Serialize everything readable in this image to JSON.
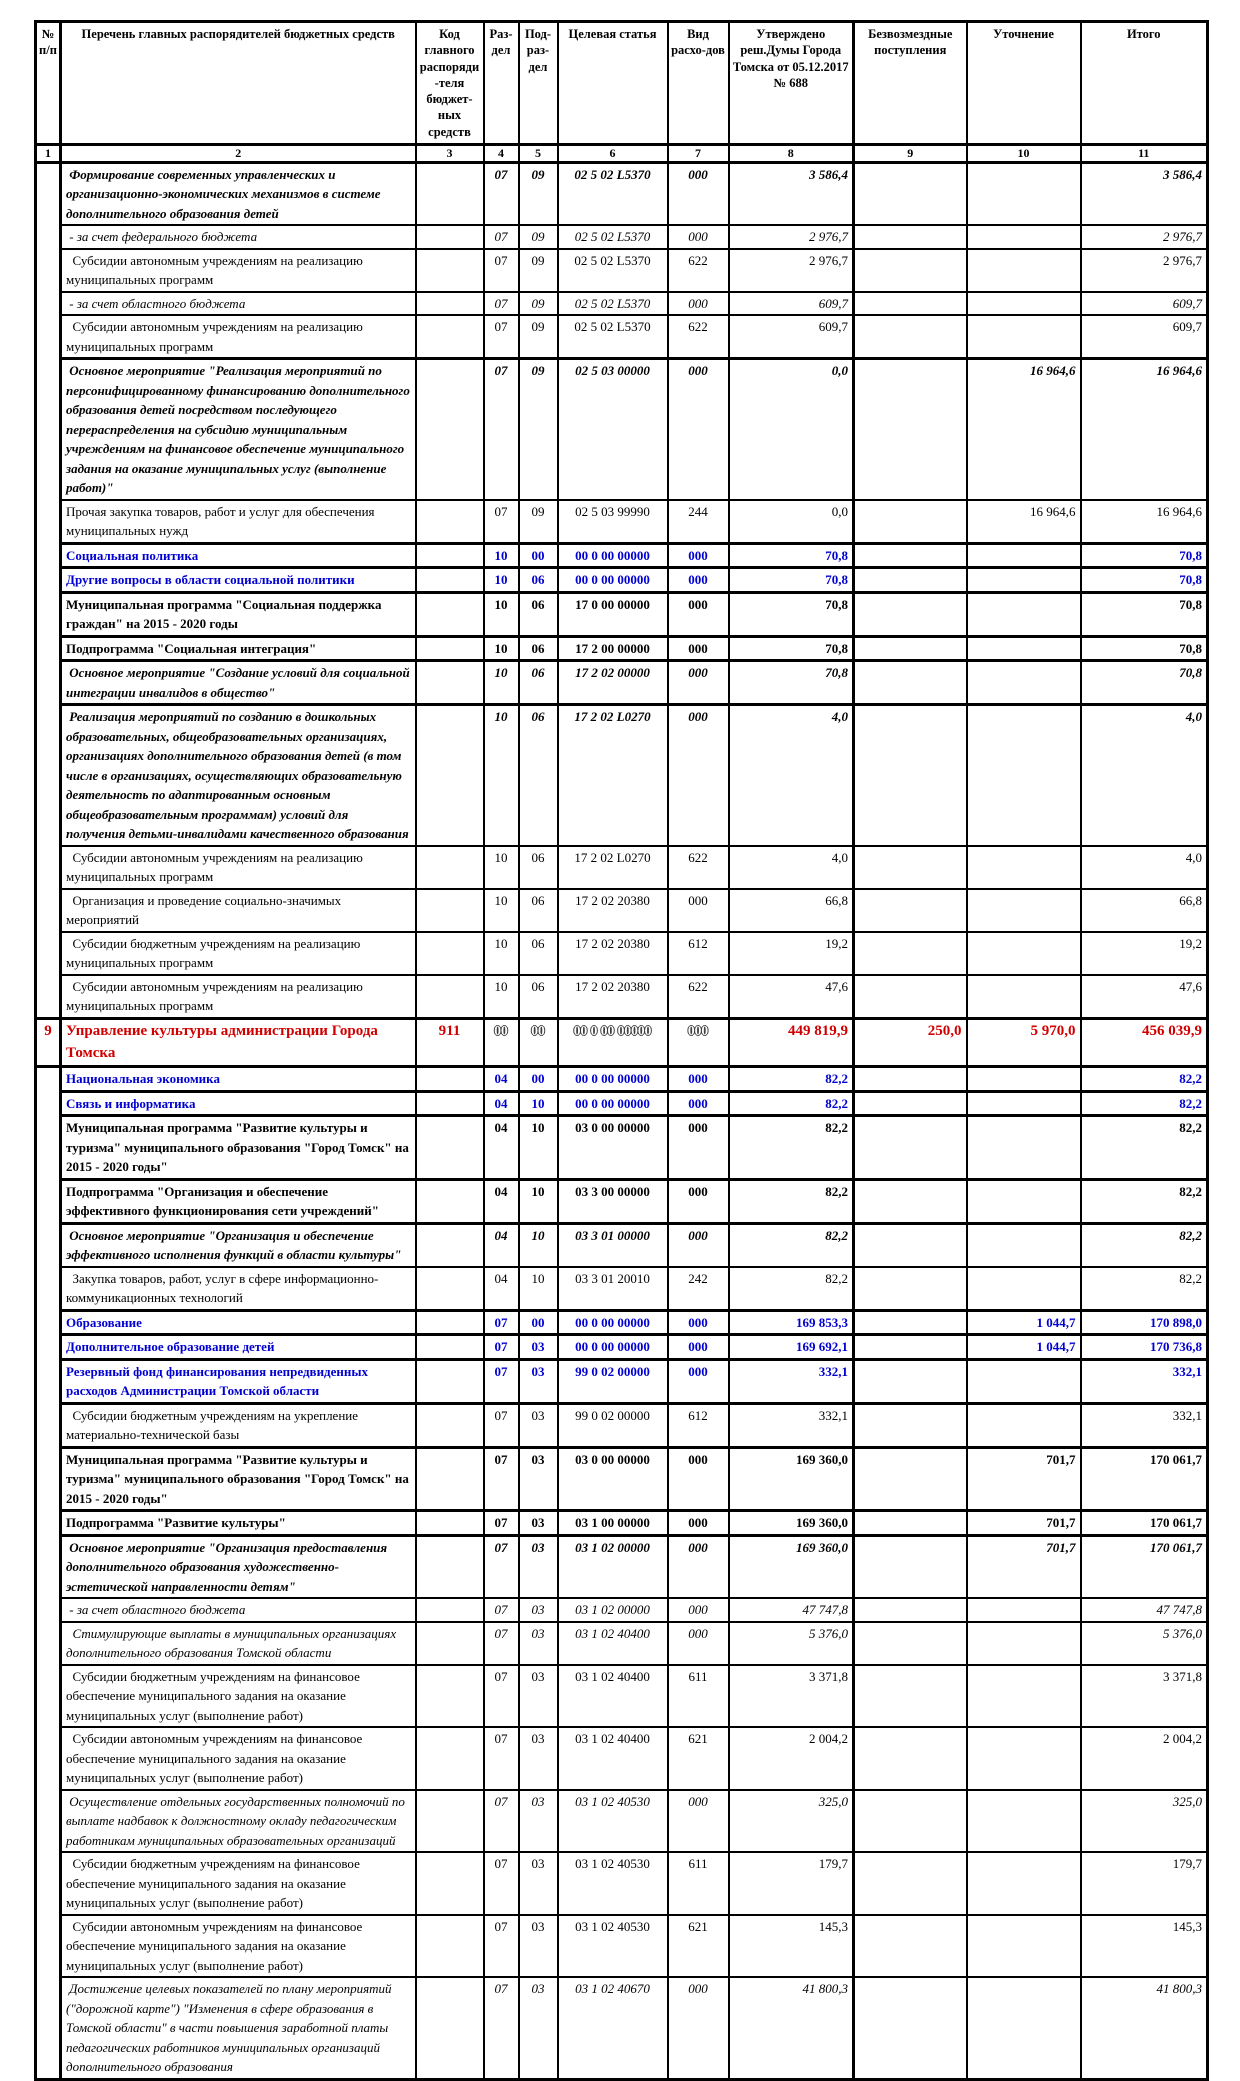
{
  "table": {
    "columns": [
      {
        "id": "num",
        "label": "№ п/п"
      },
      {
        "id": "name",
        "label": "Перечень главных распорядителей бюджетных средств"
      },
      {
        "id": "code",
        "label": "Код главного распоряди-теля бюджет-ных средств"
      },
      {
        "id": "razdel",
        "label": "Раз-дел"
      },
      {
        "id": "podrazdel",
        "label": "Под-раз-дел"
      },
      {
        "id": "target",
        "label": "Целевая статья"
      },
      {
        "id": "vid",
        "label": "Вид расхо-дов"
      },
      {
        "id": "approved",
        "label": "Утверждено реш.Думы Города Томска от 05.12.2017 № 688"
      },
      {
        "id": "gratuitous",
        "label": "Безвозмездные поступления"
      },
      {
        "id": "refine",
        "label": "Уточнение"
      },
      {
        "id": "total",
        "label": "Итого"
      }
    ],
    "column_numbers": [
      "1",
      "2",
      "3",
      "4",
      "5",
      "6",
      "7",
      "8",
      "9",
      "10",
      "11"
    ],
    "rows": [
      {
        "style": "bold-italic",
        "num": "",
        "name": " Формирование современных управленческих и организационно-экономических механизмов в системе дополнительного образования детей",
        "code": "",
        "razdel": "07",
        "podrazdel": "09",
        "target": "02 5 02 L5370",
        "vid": "000",
        "approved": "3 586,4",
        "gratuitous": "",
        "refine": "",
        "total": "3 586,4"
      },
      {
        "style": "italic",
        "num": "",
        "name": " - за счет федерального бюджета",
        "code": "",
        "razdel": "07",
        "podrazdel": "09",
        "target": "02 5 02 L5370",
        "vid": "000",
        "approved": "2 976,7",
        "gratuitous": "",
        "refine": "",
        "total": "2 976,7"
      },
      {
        "style": "normal",
        "num": "",
        "name": "  Субсидии автономным учреждениям на реализацию муниципальных программ",
        "code": "",
        "razdel": "07",
        "podrazdel": "09",
        "target": "02 5 02 L5370",
        "vid": "622",
        "approved": "2 976,7",
        "gratuitous": "",
        "refine": "",
        "total": "2 976,7"
      },
      {
        "style": "italic",
        "num": "",
        "name": " - за счет областного бюджета",
        "code": "",
        "razdel": "07",
        "podrazdel": "09",
        "target": "02 5 02 L5370",
        "vid": "000",
        "approved": "609,7",
        "gratuitous": "",
        "refine": "",
        "total": "609,7"
      },
      {
        "style": "normal",
        "num": "",
        "name": "  Субсидии автономным учреждениям на реализацию муниципальных программ",
        "code": "",
        "razdel": "07",
        "podrazdel": "09",
        "target": "02 5 02 L5370",
        "vid": "622",
        "approved": "609,7",
        "gratuitous": "",
        "refine": "",
        "total": "609,7"
      },
      {
        "style": "bold-italic",
        "num": "",
        "name": " Основное мероприятие \"Реализация мероприятий по персонифицированному финансированию дополнительного образования детей посредством последующего перераспределения на субсидию муниципальным учреждениям на финансовое обеспечение муниципального задания на оказание муниципальных услуг (выполнение работ)\"",
        "code": "",
        "razdel": "07",
        "podrazdel": "09",
        "target": "02 5 03 00000",
        "vid": "000",
        "approved": "0,0",
        "gratuitous": "",
        "refine": "16 964,6",
        "total": "16 964,6"
      },
      {
        "style": "normal",
        "num": "",
        "name": "Прочая закупка товаров, работ и услуг для обеспечения муниципальных нужд",
        "code": "",
        "razdel": "07",
        "podrazdel": "09",
        "target": "02 5 03 99990",
        "vid": "244",
        "approved": "0,0",
        "gratuitous": "",
        "refine": "16 964,6",
        "total": "16 964,6"
      },
      {
        "style": "blue",
        "num": "",
        "name": "Социальная политика",
        "code": "",
        "razdel": "10",
        "podrazdel": "00",
        "target": "00 0 00 00000",
        "vid": "000",
        "approved": "70,8",
        "gratuitous": "",
        "refine": "",
        "total": "70,8"
      },
      {
        "style": "blue",
        "num": "",
        "name": "Другие вопросы в области социальной политики",
        "code": "",
        "razdel": "10",
        "podrazdel": "06",
        "target": "00 0 00 00000",
        "vid": "000",
        "approved": "70,8",
        "gratuitous": "",
        "refine": "",
        "total": "70,8"
      },
      {
        "style": "bold",
        "num": "",
        "name": "Муниципальная программа \"Социальная поддержка граждан\" на 2015 - 2020 годы",
        "code": "",
        "razdel": "10",
        "podrazdel": "06",
        "target": "17 0 00 00000",
        "vid": "000",
        "approved": "70,8",
        "gratuitous": "",
        "refine": "",
        "total": "70,8"
      },
      {
        "style": "bold",
        "num": "",
        "name": "Подпрограмма \"Социальная интеграция\"",
        "code": "",
        "razdel": "10",
        "podrazdel": "06",
        "target": "17 2 00 00000",
        "vid": "000",
        "approved": "70,8",
        "gratuitous": "",
        "refine": "",
        "total": "70,8"
      },
      {
        "style": "bold-italic",
        "num": "",
        "name": " Основное мероприятие \"Создание условий для социальной интеграции инвалидов в общество\"",
        "code": "",
        "razdel": "10",
        "podrazdel": "06",
        "target": "17 2 02 00000",
        "vid": "000",
        "approved": "70,8",
        "gratuitous": "",
        "refine": "",
        "total": "70,8"
      },
      {
        "style": "bold-italic",
        "num": "",
        "name": " Реализация мероприятий по созданию в дошкольных образовательных, общеобразовательных организациях, организациях дополнительного образования детей (в том числе в организациях, осуществляющих образовательную деятельность по адаптированным основным общеобразовательным программам) условий для получения детьми-инвалидами качественного образования",
        "code": "",
        "razdel": "10",
        "podrazdel": "06",
        "target": "17 2 02 L0270",
        "vid": "000",
        "approved": "4,0",
        "gratuitous": "",
        "refine": "",
        "total": "4,0"
      },
      {
        "style": "normal",
        "num": "",
        "name": "  Субсидии автономным учреждениям на реализацию муниципальных программ",
        "code": "",
        "razdel": "10",
        "podrazdel": "06",
        "target": "17 2 02 L0270",
        "vid": "622",
        "approved": "4,0",
        "gratuitous": "",
        "refine": "",
        "total": "4,0"
      },
      {
        "style": "normal",
        "num": "",
        "name": "  Организация и проведение социально-значимых мероприятий",
        "code": "",
        "razdel": "10",
        "podrazdel": "06",
        "target": "17 2 02 20380",
        "vid": "000",
        "approved": "66,8",
        "gratuitous": "",
        "refine": "",
        "total": "66,8"
      },
      {
        "style": "normal",
        "num": "",
        "name": "  Субсидии бюджетным учреждениям на реализацию муниципальных программ",
        "code": "",
        "razdel": "10",
        "podrazdel": "06",
        "target": "17 2 02 20380",
        "vid": "612",
        "approved": "19,2",
        "gratuitous": "",
        "refine": "",
        "total": "19,2"
      },
      {
        "style": "normal",
        "num": "",
        "name": "  Субсидии автономным учреждениям на реализацию муниципальных программ",
        "code": "",
        "razdel": "10",
        "podrazdel": "06",
        "target": "17 2 02 20380",
        "vid": "622",
        "approved": "47,6",
        "gratuitous": "",
        "refine": "",
        "total": "47,6"
      },
      {
        "style": "red",
        "num": "9",
        "name": "Управление культуры администрации Города Томска",
        "code": "911",
        "razdel": "00",
        "podrazdel": "00",
        "target": "00 0 00 00000",
        "vid": "000",
        "approved": "449 819,9",
        "gratuitous": "250,0",
        "refine": "5 970,0",
        "total": "456 039,9"
      },
      {
        "style": "blue",
        "num": "",
        "name": "Национальная экономика",
        "code": "",
        "razdel": "04",
        "podrazdel": "00",
        "target": "00 0 00 00000",
        "vid": "000",
        "approved": "82,2",
        "gratuitous": "",
        "refine": "",
        "total": "82,2"
      },
      {
        "style": "blue",
        "num": "",
        "name": "Связь и информатика",
        "code": "",
        "razdel": "04",
        "podrazdel": "10",
        "target": "00 0 00 00000",
        "vid": "000",
        "approved": "82,2",
        "gratuitous": "",
        "refine": "",
        "total": "82,2"
      },
      {
        "style": "bold",
        "num": "",
        "name": "Муниципальная программа \"Развитие культуры и туризма\" муниципального образования \"Город Томск\" на 2015 - 2020 годы\"",
        "code": "",
        "razdel": "04",
        "podrazdel": "10",
        "target": "03 0 00 00000",
        "vid": "000",
        "approved": "82,2",
        "gratuitous": "",
        "refine": "",
        "total": "82,2"
      },
      {
        "style": "bold",
        "num": "",
        "name": "Подпрограмма \"Организация и обеспечение эффективного функционирования сети учреждений\"",
        "code": "",
        "razdel": "04",
        "podrazdel": "10",
        "target": "03 3 00 00000",
        "vid": "000",
        "approved": "82,2",
        "gratuitous": "",
        "refine": "",
        "total": "82,2"
      },
      {
        "style": "bold-italic",
        "num": "",
        "name": " Основное мероприятие \"Организация и обеспечение эффективного исполнения функций в области культуры\"",
        "code": "",
        "razdel": "04",
        "podrazdel": "10",
        "target": "03 3 01 00000",
        "vid": "000",
        "approved": "82,2",
        "gratuitous": "",
        "refine": "",
        "total": "82,2"
      },
      {
        "style": "normal",
        "num": "",
        "name": "  Закупка товаров, работ, услуг в сфере информационно-коммуникационных технологий",
        "code": "",
        "razdel": "04",
        "podrazdel": "10",
        "target": "03 3 01 20010",
        "vid": "242",
        "approved": "82,2",
        "gratuitous": "",
        "refine": "",
        "total": "82,2"
      },
      {
        "style": "blue",
        "num": "",
        "name": "Образование",
        "code": "",
        "razdel": "07",
        "podrazdel": "00",
        "target": "00 0 00 00000",
        "vid": "000",
        "approved": "169 853,3",
        "gratuitous": "",
        "refine": "1 044,7",
        "total": "170 898,0"
      },
      {
        "style": "blue",
        "num": "",
        "name": "Дополнительное образование детей",
        "code": "",
        "razdel": "07",
        "podrazdel": "03",
        "target": "00 0 00 00000",
        "vid": "000",
        "approved": "169 692,1",
        "gratuitous": "",
        "refine": "1 044,7",
        "total": "170 736,8"
      },
      {
        "style": "blue",
        "num": "",
        "name": "Резервный фонд финансирования непредвиденных расходов Администрации Томской области",
        "code": "",
        "razdel": "07",
        "podrazdel": "03",
        "target": "99 0 02 00000",
        "vid": "000",
        "approved": "332,1",
        "gratuitous": "",
        "refine": "",
        "total": "332,1"
      },
      {
        "style": "normal",
        "num": "",
        "name": "  Субсидии бюджетным учреждениям на укрепление материально-технической базы",
        "code": "",
        "razdel": "07",
        "podrazdel": "03",
        "target": "99 0 02 00000",
        "vid": "612",
        "approved": "332,1",
        "gratuitous": "",
        "refine": "",
        "total": "332,1"
      },
      {
        "style": "bold",
        "num": "",
        "name": "Муниципальная программа \"Развитие культуры и туризма\" муниципального образования \"Город Томск\" на 2015 - 2020 годы\"",
        "code": "",
        "razdel": "07",
        "podrazdel": "03",
        "target": "03 0 00 00000",
        "vid": "000",
        "approved": "169 360,0",
        "gratuitous": "",
        "refine": "701,7",
        "total": "170 061,7"
      },
      {
        "style": "bold",
        "num": "",
        "name": "Подпрограмма \"Развитие культуры\"",
        "code": "",
        "razdel": "07",
        "podrazdel": "03",
        "target": "03 1 00 00000",
        "vid": "000",
        "approved": "169 360,0",
        "gratuitous": "",
        "refine": "701,7",
        "total": "170 061,7"
      },
      {
        "style": "bold-italic",
        "num": "",
        "name": " Основное мероприятие \"Организация предоставления дополнительного образования художественно-эстетической направленности детям\"",
        "code": "",
        "razdel": "07",
        "podrazdel": "03",
        "target": "03 1 02 00000",
        "vid": "000",
        "approved": "169 360,0",
        "gratuitous": "",
        "refine": "701,7",
        "total": "170 061,7"
      },
      {
        "style": "italic",
        "num": "",
        "name": " - за счет областного бюджета",
        "code": "",
        "razdel": "07",
        "podrazdel": "03",
        "target": "03 1 02 00000",
        "vid": "000",
        "approved": "47 747,8",
        "gratuitous": "",
        "refine": "",
        "total": "47 747,8"
      },
      {
        "style": "italic",
        "num": "",
        "name": "  Стимулирующие выплаты в муниципальных организациях дополнительного образования Томской области",
        "code": "",
        "razdel": "07",
        "podrazdel": "03",
        "target": "03 1 02 40400",
        "vid": "000",
        "approved": "5 376,0",
        "gratuitous": "",
        "refine": "",
        "total": "5 376,0"
      },
      {
        "style": "normal",
        "num": "",
        "name": "  Субсидии бюджетным учреждениям на финансовое обеспечение муниципального задания на оказание муниципальных услуг (выполнение работ)",
        "code": "",
        "razdel": "07",
        "podrazdel": "03",
        "target": "03 1 02 40400",
        "vid": "611",
        "approved": "3 371,8",
        "gratuitous": "",
        "refine": "",
        "total": "3 371,8"
      },
      {
        "style": "normal",
        "num": "",
        "name": "  Субсидии автономным учреждениям на финансовое обеспечение муниципального задания на оказание муниципальных услуг (выполнение работ)",
        "code": "",
        "razdel": "07",
        "podrazdel": "03",
        "target": "03 1 02 40400",
        "vid": "621",
        "approved": "2 004,2",
        "gratuitous": "",
        "refine": "",
        "total": "2 004,2"
      },
      {
        "style": "italic",
        "num": "",
        "name": " Осуществление отдельных государственных полномочий по выплате надбавок к должностному окладу педагогическим работникам муниципальных образовательных организаций",
        "code": "",
        "razdel": "07",
        "podrazdel": "03",
        "target": "03 1 02 40530",
        "vid": "000",
        "approved": "325,0",
        "gratuitous": "",
        "refine": "",
        "total": "325,0"
      },
      {
        "style": "normal",
        "num": "",
        "name": "  Субсидии бюджетным учреждениям на финансовое обеспечение муниципального задания на оказание муниципальных услуг (выполнение работ)",
        "code": "",
        "razdel": "07",
        "podrazdel": "03",
        "target": "03 1 02 40530",
        "vid": "611",
        "approved": "179,7",
        "gratuitous": "",
        "refine": "",
        "total": "179,7"
      },
      {
        "style": "normal",
        "num": "",
        "name": "  Субсидии автономным учреждениям на финансовое обеспечение муниципального задания на оказание муниципальных услуг (выполнение работ)",
        "code": "",
        "razdel": "07",
        "podrazdel": "03",
        "target": "03 1 02 40530",
        "vid": "621",
        "approved": "145,3",
        "gratuitous": "",
        "refine": "",
        "total": "145,3"
      },
      {
        "style": "italic",
        "num": "",
        "name": " Достижение целевых показателей по плану мероприятий (\"дорожной карте\") \"Изменения в сфере образования в Томской области\" в части повышения заработной платы педагогических работников муниципальных организаций дополнительного образования",
        "code": "",
        "razdel": "07",
        "podrazdel": "03",
        "target": "03 1 02 40670",
        "vid": "000",
        "approved": "41 800,3",
        "gratuitous": "",
        "refine": "",
        "total": "41 800,3"
      }
    ],
    "colors": {
      "section_blue": "#0000d2",
      "section_red": "#d10000",
      "border_black": "#000000"
    }
  }
}
